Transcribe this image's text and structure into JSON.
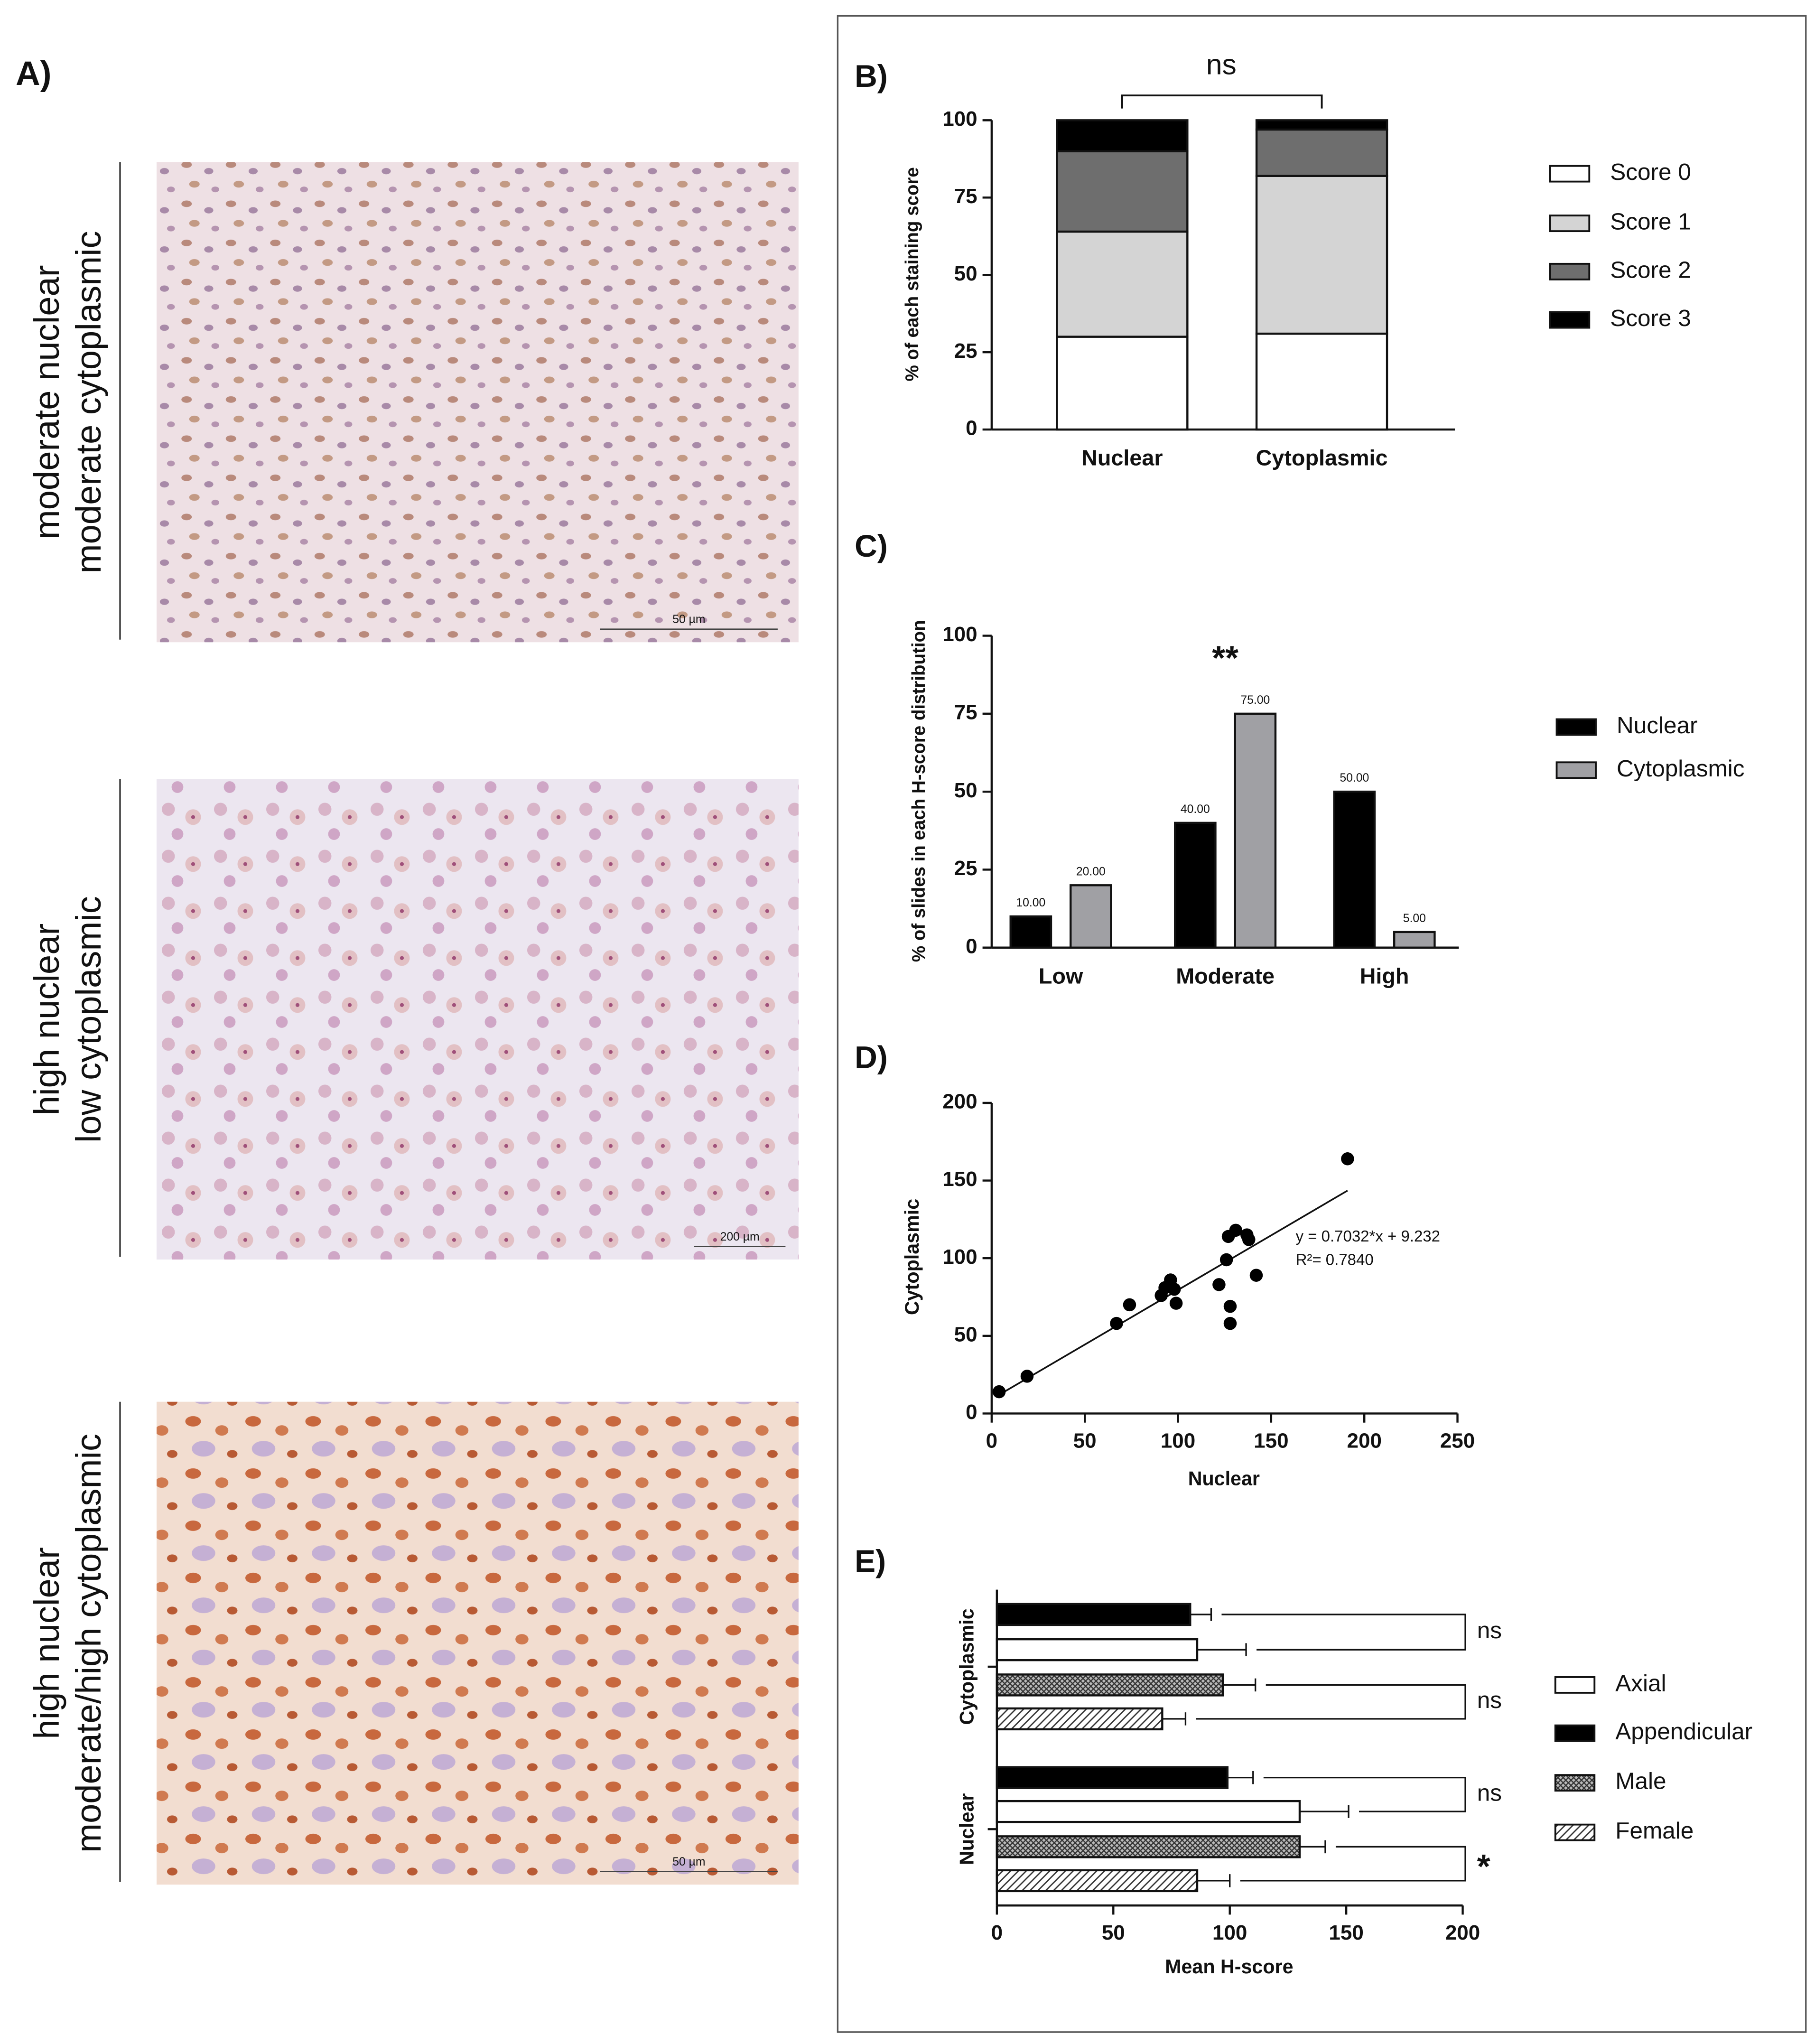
{
  "panel_a": {
    "label": "A)",
    "images": [
      {
        "caption": [
          "moderate nuclear",
          "moderate cytoplasmic"
        ],
        "scale_bar": "50 µm"
      },
      {
        "caption": [
          "high nuclear",
          "low cytoplasmic"
        ],
        "scale_bar": "200 µm"
      },
      {
        "caption": [
          "high nuclear",
          "moderate/high cytoplasmic"
        ],
        "scale_bar": "50 µm"
      }
    ]
  },
  "chart_data": [
    {
      "type": "stacked_bar",
      "panel_label": "B)",
      "y_label": "% of each staining score",
      "categories": [
        "Nuclear",
        "Cytoplasmic"
      ],
      "series": [
        {
          "name": "Score 0",
          "color": "#ffffff",
          "values": [
            30,
            31
          ]
        },
        {
          "name": "Score 1",
          "color": "#d4d4d4",
          "values": [
            34,
            51
          ]
        },
        {
          "name": "Score 2",
          "color": "#6e6e6e",
          "values": [
            26,
            15
          ]
        },
        {
          "name": "Score 3",
          "color": "#000000",
          "values": [
            10,
            3
          ]
        }
      ],
      "ylim": [
        0,
        100
      ],
      "yticks": [
        0,
        25,
        50,
        75,
        100
      ],
      "annotation": "ns",
      "legend": "right"
    },
    {
      "type": "bar",
      "panel_label": "C)",
      "y_label": "% of slides in each H-score distribution",
      "categories": [
        "Low",
        "Moderate",
        "High"
      ],
      "series": [
        {
          "name": "Nuclear",
          "color": "#000000",
          "values": [
            10,
            40,
            50
          ],
          "value_labels": [
            "10.00",
            "40.00",
            "50.00"
          ]
        },
        {
          "name": "Cytoplasmic",
          "color": "#a0a0a4",
          "values": [
            20,
            75,
            5
          ],
          "value_labels": [
            "20.00",
            "75.00",
            "5.00"
          ]
        }
      ],
      "ylim": [
        0,
        100
      ],
      "yticks": [
        0,
        25,
        50,
        75,
        100
      ],
      "annotation": "**",
      "legend": "right"
    },
    {
      "type": "scatter",
      "panel_label": "D)",
      "x_label": "Nuclear",
      "y_label": "Cytoplasmic",
      "x": [
        4,
        19,
        67,
        74,
        91,
        93,
        96,
        98,
        99,
        122,
        126,
        127,
        131,
        137,
        138,
        142,
        128,
        128,
        191
      ],
      "values": [
        14,
        24,
        58,
        70,
        76,
        81,
        86,
        80,
        71,
        83,
        99,
        114,
        118,
        115,
        112,
        89,
        69,
        58,
        164
      ],
      "color": "#000000",
      "xlim": [
        0,
        250
      ],
      "xticks": [
        0,
        50,
        100,
        150,
        200,
        250
      ],
      "ylim": [
        0,
        200
      ],
      "yticks": [
        0,
        50,
        100,
        150,
        200
      ],
      "fit": {
        "slope": 0.7032,
        "intercept": 9.232,
        "label": "y = 0.7032*x + 9.232",
        "r2_label": "R²= 0.7840"
      }
    },
    {
      "type": "hbar_error",
      "panel_label": "E)",
      "x_label": "Mean H-score",
      "categories": [
        "Cytoplasmic",
        "Nuclear"
      ],
      "series": [
        {
          "name": "Axial",
          "color": "#ffffff",
          "values": [
            86,
            130
          ],
          "errors": [
            21,
            21
          ]
        },
        {
          "name": "Appendicular",
          "color": "#000000",
          "values": [
            83,
            99
          ],
          "errors": [
            9,
            11
          ]
        },
        {
          "name": "Male",
          "color": "#555555",
          "pattern": "crosshatch",
          "values": [
            97,
            130
          ],
          "errors": [
            14,
            11
          ]
        },
        {
          "name": "Female",
          "color": "#555555",
          "pattern": "diagonal",
          "values": [
            71,
            86
          ],
          "errors": [
            10,
            14
          ]
        }
      ],
      "annotations": [
        "ns",
        "ns",
        "ns",
        "*"
      ],
      "xlim": [
        0,
        200
      ],
      "xticks": [
        0,
        50,
        100,
        150,
        200
      ],
      "legend": "right"
    }
  ]
}
